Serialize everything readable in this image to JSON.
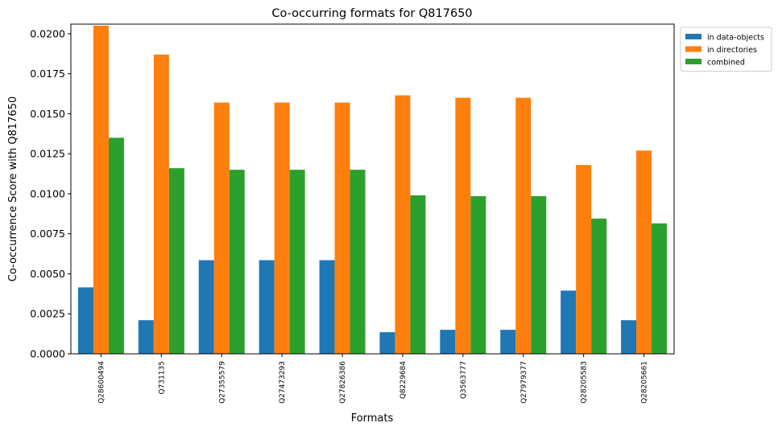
{
  "chart_data": {
    "type": "bar",
    "title": "Co-occurring formats for Q817650",
    "xlabel": "Formats",
    "ylabel": "Co-occurrence Score with Q817650",
    "categories": [
      "Q28600494",
      "Q731135",
      "Q27355579",
      "Q27473293",
      "Q27826386",
      "Q8229684",
      "Q3563777",
      "Q27979377",
      "Q28205583",
      "Q28205661"
    ],
    "ylim": [
      0,
      0.0206
    ],
    "yticks": [
      "0.0000",
      "0.0025",
      "0.0050",
      "0.0075",
      "0.0100",
      "0.0125",
      "0.0150",
      "0.0175",
      "0.0200"
    ],
    "grid": false,
    "legend_position": "outside-top-right",
    "series": [
      {
        "name": "in data-objects",
        "color": "#1f77b4",
        "values": [
          0.00415,
          0.0021,
          0.00585,
          0.00585,
          0.00585,
          0.00135,
          0.0015,
          0.0015,
          0.00395,
          0.0021
        ]
      },
      {
        "name": "in directories",
        "color": "#ff7f0e",
        "values": [
          0.0205,
          0.0187,
          0.0157,
          0.0157,
          0.0157,
          0.01615,
          0.016,
          0.016,
          0.0118,
          0.0127
        ]
      },
      {
        "name": "combined",
        "color": "#2ca02c",
        "values": [
          0.0135,
          0.0116,
          0.0115,
          0.0115,
          0.0115,
          0.0099,
          0.00985,
          0.00985,
          0.00845,
          0.00815
        ]
      }
    ]
  }
}
